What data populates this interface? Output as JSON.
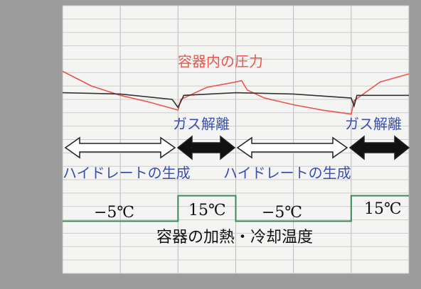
{
  "chart_data": {
    "type": "line",
    "xlim": [
      0,
      6
    ],
    "ylim": [
      0,
      20
    ],
    "grid": true,
    "series": [
      {
        "name": "容器内の圧力",
        "color": "#e8564f",
        "x": [
          0,
          0.5,
          1,
          1.5,
          2,
          2.05,
          2.5,
          3,
          3.1,
          3.2,
          3.5,
          4,
          4.5,
          5,
          5.05,
          5.5,
          6
        ],
        "values": [
          15.1,
          14.0,
          13.3,
          12.8,
          12.2,
          13.0,
          13.9,
          14.3,
          14.4,
          13.7,
          13.1,
          12.6,
          12.2,
          11.9,
          12.9,
          14.3,
          14.9
        ]
      },
      {
        "color": "#333333",
        "x": [
          0,
          1,
          1.9,
          2,
          2.1,
          3,
          4,
          5,
          5.05,
          5.1,
          6
        ],
        "values": [
          13.5,
          13.4,
          13.0,
          12.4,
          13.3,
          13.5,
          13.4,
          13.1,
          12.5,
          13.3,
          13.3
        ]
      },
      {
        "name": "容器の加熱・冷却温度",
        "color": "#3a8a5a",
        "x": [
          0,
          2,
          2,
          3,
          3,
          5,
          5,
          6
        ],
        "values": [
          3.9,
          3.9,
          5.8,
          5.8,
          3.9,
          3.9,
          5.8,
          5.8
        ]
      }
    ],
    "annotations": {
      "gas_release": [
        "ガス解離",
        "ガス解離"
      ],
      "hydrate_formation": [
        "ハイドレートの生成",
        "ハイドレートの生成"
      ],
      "temperatures": [
        "−5℃",
        "15℃",
        "−5℃",
        "15℃"
      ]
    }
  }
}
